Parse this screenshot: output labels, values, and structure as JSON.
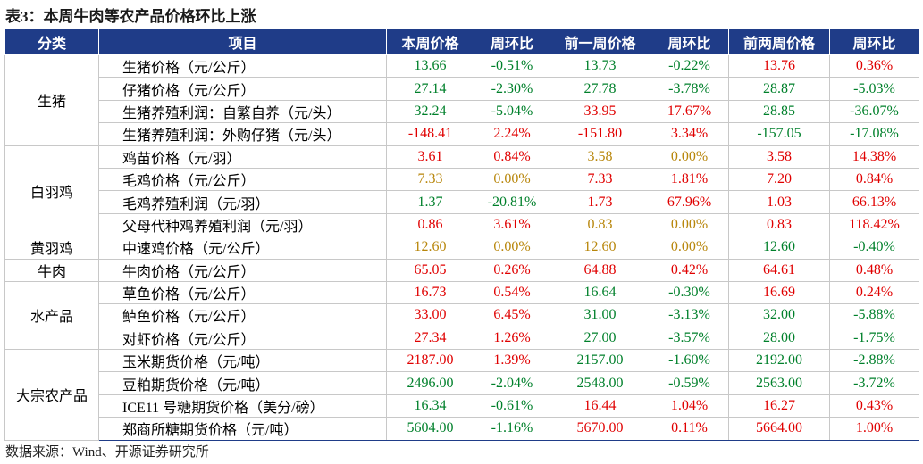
{
  "title": "表3：本周牛肉等农产品价格环比上涨",
  "colors": {
    "r": "#e00000",
    "g": "#00802b",
    "o": "#b8860b"
  },
  "table": {
    "header": [
      "分类",
      "项目",
      "本周价格",
      "周环比",
      "前一周价格",
      "周环比",
      "前两周价格",
      "周环比"
    ],
    "groups": [
      {
        "name": "生猪",
        "rows": [
          {
            "item": "生猪价格（元/公斤）",
            "cells": [
              {
                "text": "13.66",
                "color": "g"
              },
              {
                "text": "-0.51%",
                "color": "g"
              },
              {
                "text": "13.73",
                "color": "g"
              },
              {
                "text": "-0.22%",
                "color": "g"
              },
              {
                "text": "13.76",
                "color": "r"
              },
              {
                "text": "0.36%",
                "color": "r"
              }
            ]
          },
          {
            "item": "仔猪价格（元/公斤）",
            "cells": [
              {
                "text": "27.14",
                "color": "g"
              },
              {
                "text": "-2.30%",
                "color": "g"
              },
              {
                "text": "27.78",
                "color": "g"
              },
              {
                "text": "-3.78%",
                "color": "g"
              },
              {
                "text": "28.87",
                "color": "g"
              },
              {
                "text": "-5.03%",
                "color": "g"
              }
            ]
          },
          {
            "item": "生猪养殖利润：自繁自养（元/头）",
            "cells": [
              {
                "text": "32.24",
                "color": "g"
              },
              {
                "text": "-5.04%",
                "color": "g"
              },
              {
                "text": "33.95",
                "color": "r"
              },
              {
                "text": "17.67%",
                "color": "r"
              },
              {
                "text": "28.85",
                "color": "g"
              },
              {
                "text": "-36.07%",
                "color": "g"
              }
            ]
          },
          {
            "item": "生猪养殖利润：外购仔猪（元/头）",
            "cells": [
              {
                "text": "-148.41",
                "color": "r"
              },
              {
                "text": "2.24%",
                "color": "r"
              },
              {
                "text": "-151.80",
                "color": "r"
              },
              {
                "text": "3.34%",
                "color": "r"
              },
              {
                "text": "-157.05",
                "color": "g"
              },
              {
                "text": "-17.08%",
                "color": "g"
              }
            ]
          }
        ]
      },
      {
        "name": "白羽鸡",
        "rows": [
          {
            "item": "鸡苗价格（元/羽）",
            "cells": [
              {
                "text": "3.61",
                "color": "r"
              },
              {
                "text": "0.84%",
                "color": "r"
              },
              {
                "text": "3.58",
                "color": "o"
              },
              {
                "text": "0.00%",
                "color": "o"
              },
              {
                "text": "3.58",
                "color": "r"
              },
              {
                "text": "14.38%",
                "color": "r"
              }
            ]
          },
          {
            "item": "毛鸡价格（元/公斤）",
            "cells": [
              {
                "text": "7.33",
                "color": "o"
              },
              {
                "text": "0.00%",
                "color": "o"
              },
              {
                "text": "7.33",
                "color": "r"
              },
              {
                "text": "1.81%",
                "color": "r"
              },
              {
                "text": "7.20",
                "color": "r"
              },
              {
                "text": "0.84%",
                "color": "r"
              }
            ]
          },
          {
            "item": "毛鸡养殖利润（元/羽）",
            "cells": [
              {
                "text": "1.37",
                "color": "g"
              },
              {
                "text": "-20.81%",
                "color": "g"
              },
              {
                "text": "1.73",
                "color": "r"
              },
              {
                "text": "67.96%",
                "color": "r"
              },
              {
                "text": "1.03",
                "color": "r"
              },
              {
                "text": "66.13%",
                "color": "r"
              }
            ]
          },
          {
            "item": "父母代种鸡养殖利润（元/羽）",
            "cells": [
              {
                "text": "0.86",
                "color": "r"
              },
              {
                "text": "3.61%",
                "color": "r"
              },
              {
                "text": "0.83",
                "color": "o"
              },
              {
                "text": "0.00%",
                "color": "o"
              },
              {
                "text": "0.83",
                "color": "r"
              },
              {
                "text": "118.42%",
                "color": "r"
              }
            ]
          }
        ]
      },
      {
        "name": "黄羽鸡",
        "rows": [
          {
            "item": "中速鸡价格（元/公斤）",
            "cells": [
              {
                "text": "12.60",
                "color": "o"
              },
              {
                "text": "0.00%",
                "color": "o"
              },
              {
                "text": "12.60",
                "color": "o"
              },
              {
                "text": "0.00%",
                "color": "o"
              },
              {
                "text": "12.60",
                "color": "g"
              },
              {
                "text": "-0.40%",
                "color": "g"
              }
            ]
          }
        ]
      },
      {
        "name": "牛肉",
        "rows": [
          {
            "item": "牛肉价格（元/公斤）",
            "cells": [
              {
                "text": "65.05",
                "color": "r"
              },
              {
                "text": "0.26%",
                "color": "r"
              },
              {
                "text": "64.88",
                "color": "r"
              },
              {
                "text": "0.42%",
                "color": "r"
              },
              {
                "text": "64.61",
                "color": "r"
              },
              {
                "text": "0.48%",
                "color": "r"
              }
            ]
          }
        ]
      },
      {
        "name": "水产品",
        "rows": [
          {
            "item": "草鱼价格（元/公斤）",
            "cells": [
              {
                "text": "16.73",
                "color": "r"
              },
              {
                "text": "0.54%",
                "color": "r"
              },
              {
                "text": "16.64",
                "color": "g"
              },
              {
                "text": "-0.30%",
                "color": "g"
              },
              {
                "text": "16.69",
                "color": "r"
              },
              {
                "text": "0.24%",
                "color": "r"
              }
            ]
          },
          {
            "item": "鲈鱼价格（元/公斤）",
            "cells": [
              {
                "text": "33.00",
                "color": "r"
              },
              {
                "text": "6.45%",
                "color": "r"
              },
              {
                "text": "31.00",
                "color": "g"
              },
              {
                "text": "-3.13%",
                "color": "g"
              },
              {
                "text": "32.00",
                "color": "g"
              },
              {
                "text": "-5.88%",
                "color": "g"
              }
            ]
          },
          {
            "item": "对虾价格（元/公斤）",
            "cells": [
              {
                "text": "27.34",
                "color": "r"
              },
              {
                "text": "1.26%",
                "color": "r"
              },
              {
                "text": "27.00",
                "color": "g"
              },
              {
                "text": "-3.57%",
                "color": "g"
              },
              {
                "text": "28.00",
                "color": "g"
              },
              {
                "text": "-1.75%",
                "color": "g"
              }
            ]
          }
        ]
      },
      {
        "name": "大宗农产品",
        "rows": [
          {
            "item": "玉米期货价格（元/吨）",
            "cells": [
              {
                "text": "2187.00",
                "color": "r"
              },
              {
                "text": "1.39%",
                "color": "r"
              },
              {
                "text": "2157.00",
                "color": "g"
              },
              {
                "text": "-1.60%",
                "color": "g"
              },
              {
                "text": "2192.00",
                "color": "g"
              },
              {
                "text": "-2.88%",
                "color": "g"
              }
            ]
          },
          {
            "item": "豆粕期货价格（元/吨）",
            "cells": [
              {
                "text": "2496.00",
                "color": "g"
              },
              {
                "text": "-2.04%",
                "color": "g"
              },
              {
                "text": "2548.00",
                "color": "g"
              },
              {
                "text": "-0.59%",
                "color": "g"
              },
              {
                "text": "2563.00",
                "color": "g"
              },
              {
                "text": "-3.72%",
                "color": "g"
              }
            ]
          },
          {
            "item": "ICE11 号糖期货价格（美分/磅）",
            "cells": [
              {
                "text": "16.34",
                "color": "g"
              },
              {
                "text": "-0.61%",
                "color": "g"
              },
              {
                "text": "16.44",
                "color": "r"
              },
              {
                "text": "1.04%",
                "color": "r"
              },
              {
                "text": "16.27",
                "color": "r"
              },
              {
                "text": "0.43%",
                "color": "r"
              }
            ]
          },
          {
            "item": "郑商所糖期货价格（元/吨）",
            "cells": [
              {
                "text": "5604.00",
                "color": "g"
              },
              {
                "text": "-1.16%",
                "color": "g"
              },
              {
                "text": "5670.00",
                "color": "r"
              },
              {
                "text": "0.11%",
                "color": "r"
              },
              {
                "text": "5664.00",
                "color": "r"
              },
              {
                "text": "1.00%",
                "color": "r"
              }
            ]
          }
        ]
      }
    ]
  },
  "source": "数据来源：Wind、开源证券研究所"
}
